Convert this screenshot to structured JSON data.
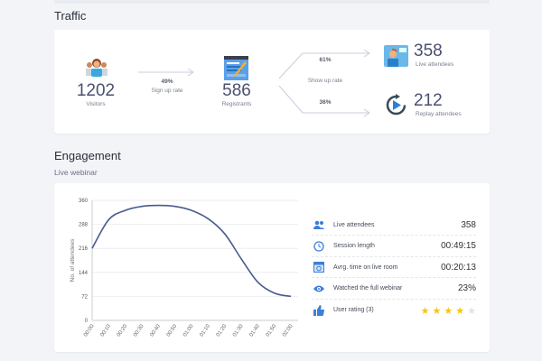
{
  "traffic": {
    "title": "Traffic",
    "visitors": {
      "value": "1202",
      "label": "Visitors"
    },
    "signup": {
      "pct": "49%",
      "label": "Sign up rate"
    },
    "registrants": {
      "value": "586",
      "label": "Registrants"
    },
    "showup": {
      "live_pct": "61%",
      "replay_pct": "36%",
      "label": "Show up rate"
    },
    "live": {
      "value": "358",
      "label": "Live attendees"
    },
    "replay": {
      "value": "212",
      "label": "Replay attendees"
    }
  },
  "engagement": {
    "title": "Engagement",
    "subtitle": "Live webinar",
    "stats": [
      {
        "icon": "people-icon",
        "label": "Live attendees",
        "value": "358"
      },
      {
        "icon": "clock-icon",
        "label": "Session length",
        "value": "00:49:15"
      },
      {
        "icon": "calendar-icon",
        "label": "Avrg. time on live room",
        "value": "00:20:13"
      },
      {
        "icon": "eye-icon",
        "label": "Watched the full webinar",
        "value": "23%"
      },
      {
        "icon": "thumbs-up-icon",
        "label": "User rating (3)",
        "rating": 4,
        "max": 5
      }
    ],
    "accent": "#3d7fd6",
    "star_color": "#f5c518"
  },
  "chart_data": {
    "type": "line",
    "ylabel": "No. of attendees",
    "xlabel": "",
    "ylim": [
      0,
      360
    ],
    "yticks": [
      "0",
      "72",
      "144",
      "216",
      "288",
      "360"
    ],
    "categories": [
      "00:00",
      "00:10",
      "00:20",
      "00:30",
      "00:40",
      "00:50",
      "01:00",
      "01:10",
      "01:20",
      "01:30",
      "01:40",
      "01:50",
      "02:00"
    ],
    "values": [
      216,
      302,
      330,
      342,
      345,
      342,
      330,
      305,
      260,
      185,
      115,
      82,
      72
    ],
    "grid": true,
    "line_color": "#4a5a8e"
  }
}
